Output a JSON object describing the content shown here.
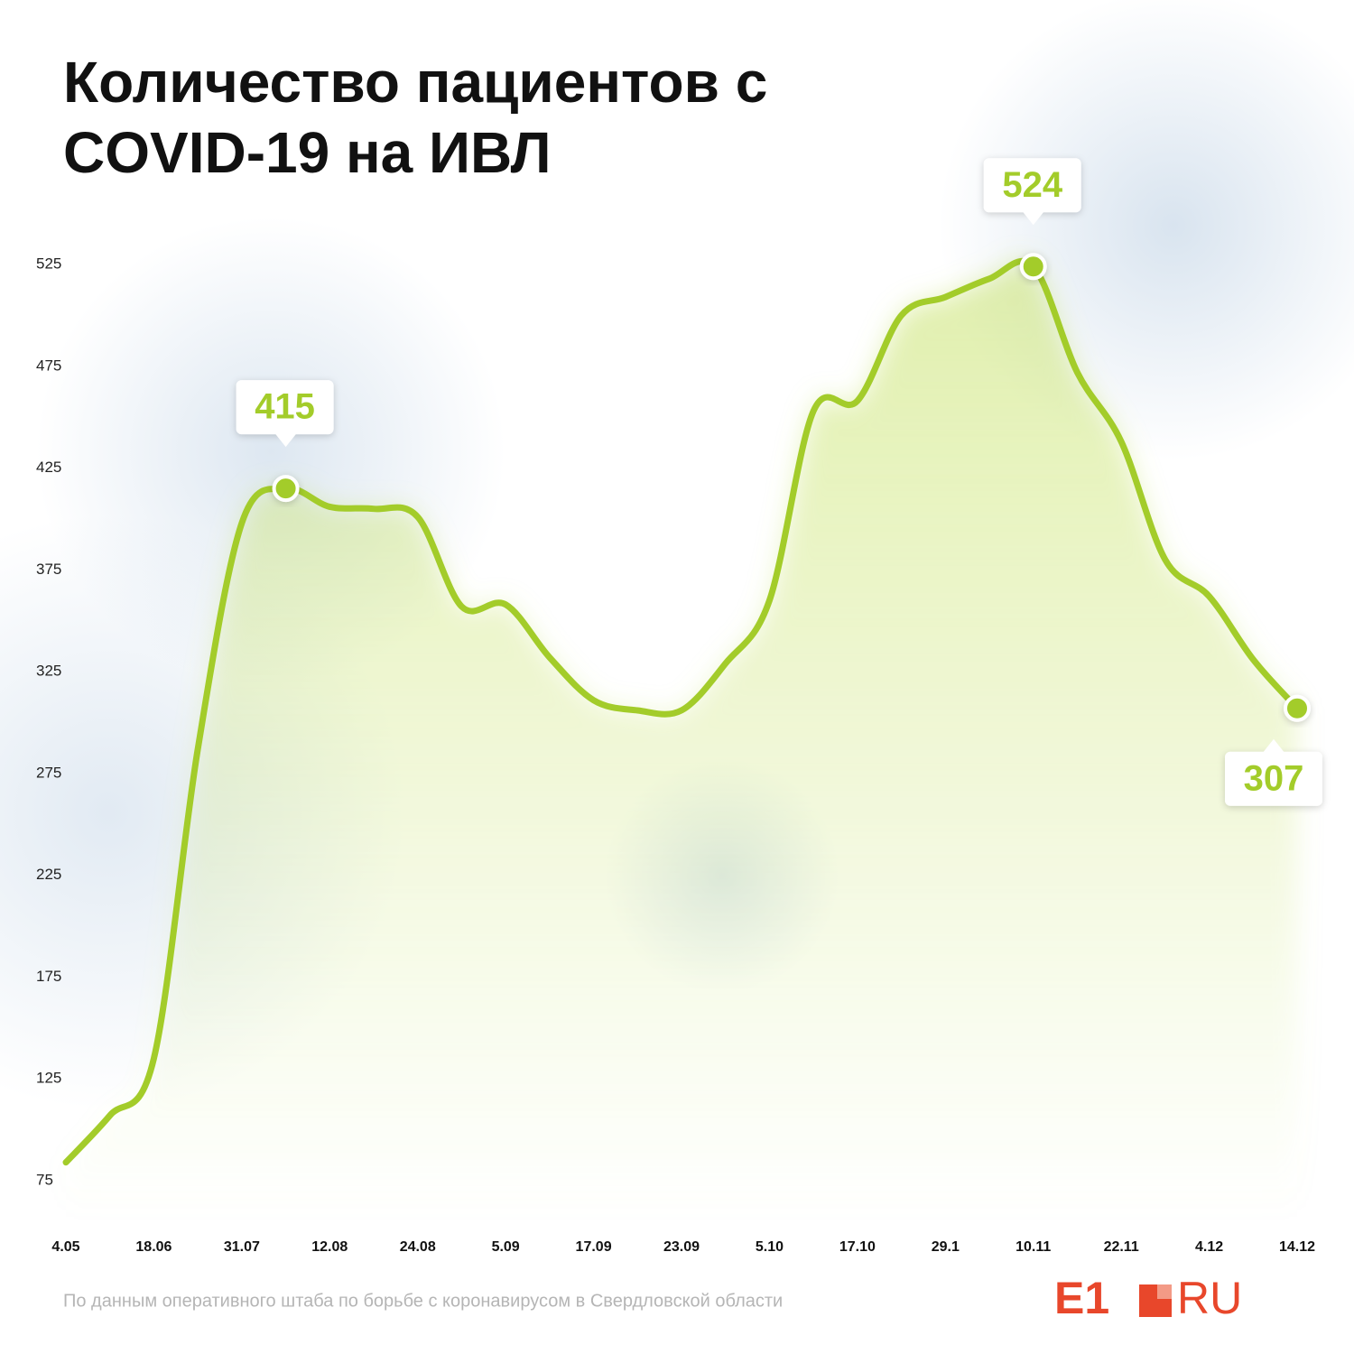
{
  "chart_data": {
    "type": "line",
    "title": "Количество пациентов с COVID-19 на ИВЛ",
    "categories": [
      "4.05",
      null,
      "18.06",
      null,
      "31.07",
      null,
      "12.08",
      null,
      "24.08",
      null,
      "5.09",
      null,
      "17.09",
      null,
      "23.09",
      null,
      "5.10",
      null,
      "17.10",
      null,
      "29.1",
      null,
      "10.11",
      null,
      "22.11",
      null,
      "4.12",
      null,
      "14.12"
    ],
    "series": [
      {
        "color": "#a3cc2a",
        "values": [
          84,
          107,
          135,
          287,
          398,
          415,
          406,
          405,
          401,
          357,
          358,
          332,
          311,
          306,
          306,
          329,
          360,
          453,
          458,
          500,
          509,
          518,
          524,
          472,
          438,
          380,
          362,
          331,
          307
        ],
        "value_labels": [
          null,
          null,
          null,
          null,
          null,
          "415",
          null,
          null,
          null,
          null,
          null,
          null,
          null,
          null,
          null,
          null,
          null,
          null,
          null,
          null,
          null,
          null,
          "524",
          null,
          null,
          null,
          null,
          null,
          "307"
        ]
      }
    ],
    "ylim": [
      75,
      525
    ],
    "yticks": [
      75,
      125,
      175,
      225,
      275,
      325,
      375,
      425,
      475,
      525
    ],
    "source": "По данным оперативного штаба по борьбе с коронавирусом в Свердловской области",
    "logo": [
      "E1",
      "RU"
    ]
  }
}
